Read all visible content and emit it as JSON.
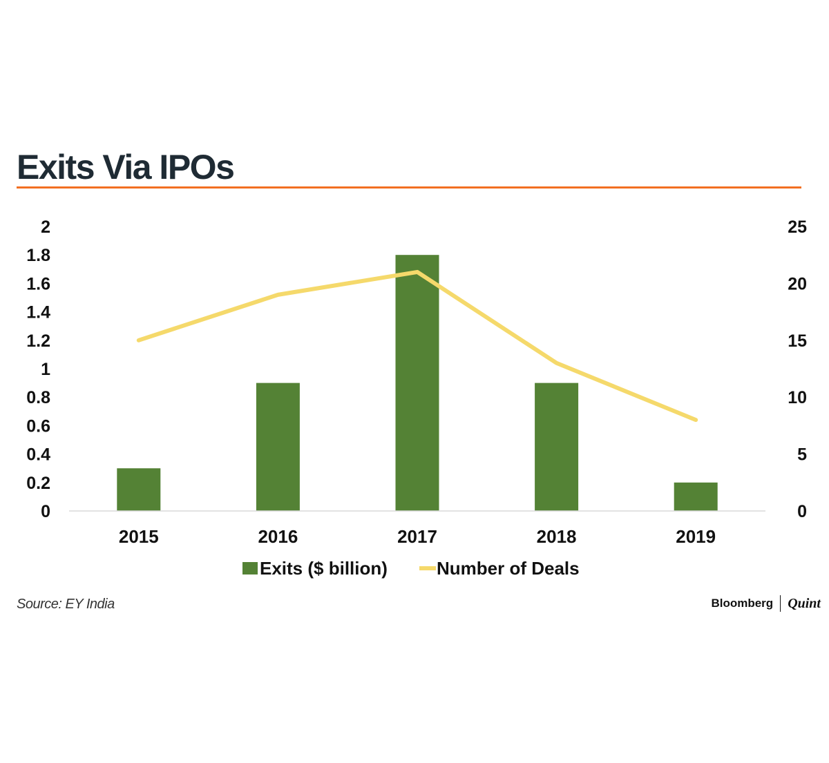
{
  "title": "Exits Via IPOs",
  "accent_color": "#f26f21",
  "source": "Source: EY India",
  "brand": {
    "name": "Bloomberg",
    "sub": "Quint"
  },
  "chart_data": {
    "type": "bar",
    "categories": [
      "2015",
      "2016",
      "2017",
      "2018",
      "2019"
    ],
    "series": [
      {
        "name": "Exits ($ billion)",
        "type": "bar",
        "axis": "left",
        "color": "#548235",
        "values": [
          0.3,
          0.9,
          1.8,
          0.9,
          0.2
        ]
      },
      {
        "name": "Number of Deals",
        "type": "line",
        "axis": "right",
        "color": "#f5d96b",
        "values": [
          15,
          19,
          21,
          13,
          8
        ]
      }
    ],
    "y_left": {
      "min": 0,
      "max": 2,
      "ticks": [
        "0",
        "0.2",
        "0.4",
        "0.6",
        "0.8",
        "1",
        "1.2",
        "1.4",
        "1.6",
        "1.8",
        "2"
      ]
    },
    "y_right": {
      "min": 0,
      "max": 25,
      "ticks": [
        "0",
        "5",
        "10",
        "15",
        "20",
        "25"
      ]
    },
    "grid": false,
    "legend_position": "bottom"
  }
}
